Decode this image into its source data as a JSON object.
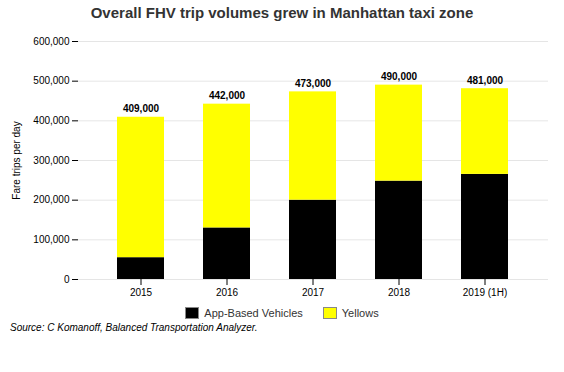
{
  "chart_data": {
    "type": "bar",
    "stacked": true,
    "title": "Overall FHV trip volumes grew in Manhattan taxi zone",
    "ylabel": "Fare trips per day",
    "source": "Source: C Komanoff, Balanced Transportation Analyzer.",
    "categories": [
      "2015",
      "2016",
      "2017",
      "2018",
      "2019 (1H)"
    ],
    "series": [
      {
        "name": "App-Based Vehicles",
        "color": "#000000",
        "values": [
          55000,
          130000,
          200000,
          248000,
          265000
        ]
      },
      {
        "name": "Yellows",
        "color": "#FFFF00",
        "values": [
          354000,
          312000,
          273000,
          242000,
          216000
        ]
      }
    ],
    "totals": [
      409000,
      442000,
      473000,
      490000,
      481000
    ],
    "total_labels": [
      "409,000",
      "442,000",
      "473,000",
      "490,000",
      "481,000"
    ],
    "ylim": [
      0,
      600000
    ],
    "yticks": [
      0,
      {
        "value": 100000,
        "label": "100,000"
      },
      {
        "value": 200000,
        "label": "200,000"
      },
      {
        "value": 300000,
        "label": "300,000"
      },
      {
        "value": 400000,
        "label": "400,000"
      },
      {
        "value": 500000,
        "label": "500,000"
      },
      {
        "value": 600000,
        "label": "600,000"
      }
    ],
    "grid": true,
    "legend": "bottom"
  }
}
